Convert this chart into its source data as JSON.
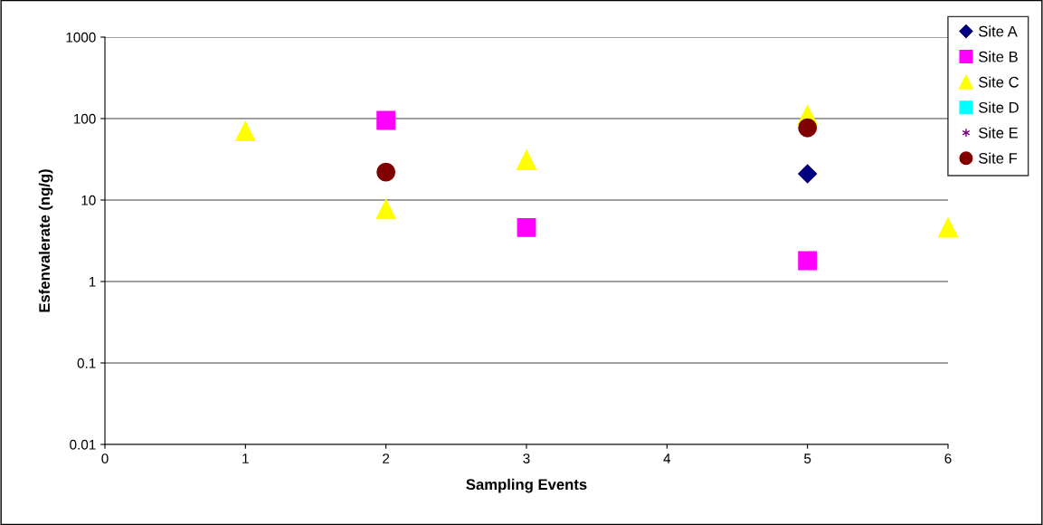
{
  "chart_data": {
    "type": "scatter",
    "xlabel": "Sampling Events",
    "ylabel": "Esfenvalerate (ng/g)",
    "log": "y",
    "xlim": [
      0,
      6
    ],
    "xticks": [
      0,
      1,
      2,
      3,
      4,
      5,
      6
    ],
    "ylim": [
      0.01,
      1000
    ],
    "yticks": [
      0.01,
      0.1,
      1,
      10,
      100,
      1000
    ],
    "grid": "y",
    "legend": "top right",
    "series": [
      {
        "name": "Site A",
        "color": "#000080",
        "marker": "diamond",
        "x": [
          5
        ],
        "values": [
          21
        ]
      },
      {
        "name": "Site B",
        "color": "#ff00ff",
        "marker": "square",
        "x": [
          2,
          3,
          5
        ],
        "values": [
          95,
          4.6,
          1.8
        ]
      },
      {
        "name": "Site C",
        "color": "#ffff00",
        "marker": "triangle",
        "x": [
          1,
          2,
          3,
          5,
          6
        ],
        "values": [
          70,
          7.7,
          31,
          110,
          4.6
        ]
      },
      {
        "name": "Site D",
        "color": "#00ffff",
        "marker": "square"
      },
      {
        "name": "Site E",
        "color": "#800080",
        "marker": "star"
      },
      {
        "name": "Site F",
        "color": "#800000",
        "marker": "circle",
        "x": [
          2,
          5
        ],
        "values": [
          22,
          77
        ]
      }
    ]
  }
}
